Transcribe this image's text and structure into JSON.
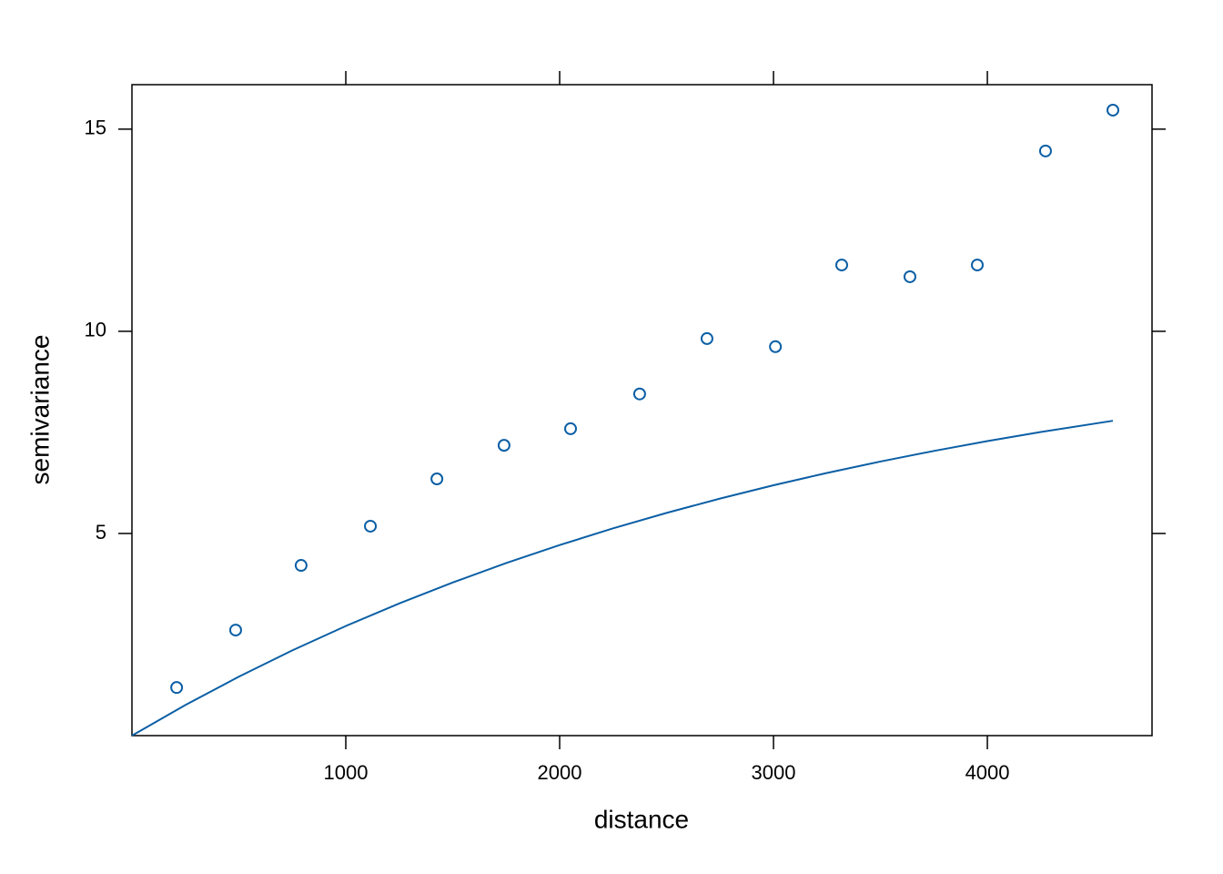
{
  "chart_data": {
    "type": "scatter",
    "x_label": "distance",
    "y_label": "semivariance",
    "xlim": [
      0,
      4770
    ],
    "ylim": [
      0,
      16.1
    ],
    "xticks": [
      1000,
      2000,
      3000,
      4000
    ],
    "yticks": [
      5,
      10,
      15
    ],
    "series": [
      {
        "mode": "points",
        "color": "#0b5fa5",
        "x": [
          209,
          485,
          791,
          1115,
          1426,
          1740,
          2051,
          2374,
          2689,
          3009,
          3319,
          3638,
          3953,
          4272,
          4587
        ],
        "values": [
          1.19,
          2.61,
          4.21,
          5.18,
          6.35,
          7.18,
          7.59,
          8.45,
          9.82,
          9.62,
          11.64,
          11.35,
          11.64,
          14.46,
          15.47
        ]
      },
      {
        "mode": "line",
        "color": "#0b5fa5",
        "x": [
          0,
          250,
          500,
          750,
          1000,
          1250,
          1500,
          1750,
          2000,
          2250,
          2500,
          2750,
          3000,
          3250,
          3500,
          3750,
          4000,
          4250,
          4587
        ],
        "values": [
          0,
          0.757,
          1.458,
          2.108,
          2.711,
          3.27,
          3.787,
          4.268,
          4.713,
          5.126,
          5.508,
          5.863,
          6.192,
          6.497,
          6.779,
          7.041,
          7.284,
          7.509,
          7.787
        ]
      }
    ]
  }
}
